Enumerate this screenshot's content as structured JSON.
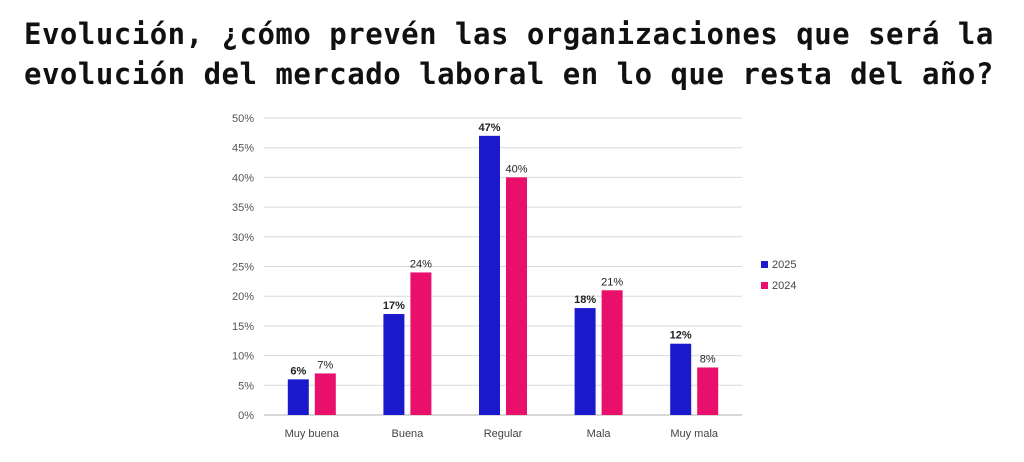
{
  "page": {
    "title_line1": "Evolución, ¿cómo prevén las organizaciones que será la",
    "title_line2": "evolución del mercado laboral en lo que resta del año?"
  },
  "chart_data": {
    "type": "bar",
    "title": "Evolución, ¿cómo prevén las organizaciones que será la evolución del mercado laboral en lo que resta del año?",
    "categories": [
      "Muy buena",
      "Buena",
      "Regular",
      "Mala",
      "Muy mala"
    ],
    "series": [
      {
        "name": "2025",
        "values": [
          6,
          17,
          47,
          18,
          12
        ],
        "color": "#1a1acc",
        "labels": [
          "6%",
          "17%",
          "47%",
          "18%",
          "12%"
        ]
      },
      {
        "name": "2024",
        "values": [
          7,
          24,
          40,
          21,
          8
        ],
        "color": "#e8106a",
        "labels": [
          "7%",
          "24%",
          "40%",
          "21%",
          "8%"
        ]
      }
    ],
    "yticks": [
      "0%",
      "5%",
      "10%",
      "15%",
      "20%",
      "25%",
      "30%",
      "35%",
      "40%",
      "45%",
      "50%"
    ],
    "ylim": [
      0,
      50
    ],
    "xlabel": "",
    "ylabel": "",
    "grid": true,
    "legend": "right"
  }
}
